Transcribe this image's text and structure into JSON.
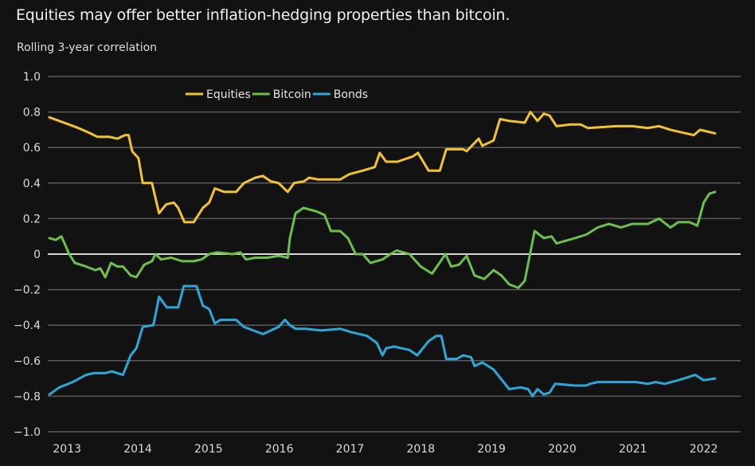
{
  "title": "Equities may offer better inflation-hedging properties than bitcoin.",
  "subtitle": "Rolling 3-year correlation",
  "chart_data": {
    "type": "line",
    "title": "Equities may offer better inflation-hedging properties than bitcoin.",
    "ylabel": "Rolling 3-year correlation",
    "xlabel": "",
    "ylim": [
      -1.0,
      1.0
    ],
    "xlim": [
      2012.75,
      2022.5
    ],
    "grid": true,
    "legend_position": "top-center",
    "y_ticks": [
      1.0,
      0.8,
      0.6,
      0.4,
      0.2,
      0,
      -0.2,
      -0.4,
      -0.6,
      -0.8,
      -1.0
    ],
    "y_tick_labels": [
      "1.0",
      "0.8",
      "0.6",
      "0.4",
      "0.2",
      "0",
      "−0.2",
      "−0.4",
      "−0.6",
      "−0.8",
      "−1.0"
    ],
    "x_ticks": [
      2013,
      2014,
      2015,
      2016,
      2017,
      2018,
      2019,
      2020,
      2021,
      2022
    ],
    "x_tick_labels": [
      "2013",
      "2014",
      "2015",
      "2016",
      "2017",
      "2018",
      "2019",
      "2020",
      "2021",
      "2022"
    ],
    "series": [
      {
        "name": "Equities",
        "color": "#f2c429",
        "points": [
          [
            2012.75,
            0.77
          ],
          [
            2012.89,
            0.75
          ],
          [
            2013.16,
            0.71
          ],
          [
            2013.33,
            0.68
          ],
          [
            2013.43,
            0.66
          ],
          [
            2013.6,
            0.66
          ],
          [
            2013.71,
            0.65
          ],
          [
            2013.82,
            0.67
          ],
          [
            2013.87,
            0.67
          ],
          [
            2013.92,
            0.58
          ],
          [
            2014.01,
            0.54
          ],
          [
            2014.07,
            0.4
          ],
          [
            2014.2,
            0.4
          ],
          [
            2014.3,
            0.23
          ],
          [
            2014.4,
            0.28
          ],
          [
            2014.51,
            0.29
          ],
          [
            2014.57,
            0.26
          ],
          [
            2014.66,
            0.18
          ],
          [
            2014.79,
            0.18
          ],
          [
            2014.92,
            0.26
          ],
          [
            2015.01,
            0.29
          ],
          [
            2015.09,
            0.37
          ],
          [
            2015.22,
            0.35
          ],
          [
            2015.39,
            0.35
          ],
          [
            2015.5,
            0.4
          ],
          [
            2015.66,
            0.43
          ],
          [
            2015.77,
            0.44
          ],
          [
            2015.88,
            0.41
          ],
          [
            2015.99,
            0.4
          ],
          [
            2016.12,
            0.35
          ],
          [
            2016.21,
            0.4
          ],
          [
            2016.35,
            0.41
          ],
          [
            2016.42,
            0.43
          ],
          [
            2016.55,
            0.42
          ],
          [
            2016.75,
            0.42
          ],
          [
            2016.86,
            0.42
          ],
          [
            2016.99,
            0.45
          ],
          [
            2017.18,
            0.47
          ],
          [
            2017.35,
            0.49
          ],
          [
            2017.42,
            0.57
          ],
          [
            2017.51,
            0.52
          ],
          [
            2017.67,
            0.52
          ],
          [
            2017.89,
            0.55
          ],
          [
            2017.96,
            0.57
          ],
          [
            2018.11,
            0.47
          ],
          [
            2018.27,
            0.47
          ],
          [
            2018.36,
            0.59
          ],
          [
            2018.6,
            0.59
          ],
          [
            2018.65,
            0.58
          ],
          [
            2018.82,
            0.65
          ],
          [
            2018.87,
            0.61
          ],
          [
            2019.03,
            0.64
          ],
          [
            2019.12,
            0.76
          ],
          [
            2019.25,
            0.75
          ],
          [
            2019.47,
            0.74
          ],
          [
            2019.55,
            0.8
          ],
          [
            2019.65,
            0.75
          ],
          [
            2019.74,
            0.79
          ],
          [
            2019.82,
            0.78
          ],
          [
            2019.92,
            0.72
          ],
          [
            2020.12,
            0.73
          ],
          [
            2020.26,
            0.73
          ],
          [
            2020.36,
            0.71
          ],
          [
            2020.77,
            0.72
          ],
          [
            2020.99,
            0.72
          ],
          [
            2021.21,
            0.71
          ],
          [
            2021.37,
            0.72
          ],
          [
            2021.53,
            0.7
          ],
          [
            2021.75,
            0.68
          ],
          [
            2021.86,
            0.67
          ],
          [
            2021.95,
            0.7
          ],
          [
            2022.16,
            0.68
          ]
        ]
      },
      {
        "name": "Bitcoin",
        "color": "#6cc04a",
        "points": [
          [
            2012.75,
            0.09
          ],
          [
            2012.84,
            0.08
          ],
          [
            2012.92,
            0.1
          ],
          [
            2013.03,
            0.0
          ],
          [
            2013.11,
            -0.05
          ],
          [
            2013.27,
            -0.07
          ],
          [
            2013.4,
            -0.09
          ],
          [
            2013.47,
            -0.08
          ],
          [
            2013.54,
            -0.13
          ],
          [
            2013.62,
            -0.05
          ],
          [
            2013.71,
            -0.07
          ],
          [
            2013.79,
            -0.07
          ],
          [
            2013.9,
            -0.12
          ],
          [
            2013.98,
            -0.13
          ],
          [
            2014.09,
            -0.06
          ],
          [
            2014.2,
            -0.04
          ],
          [
            2014.25,
            0.0
          ],
          [
            2014.33,
            -0.03
          ],
          [
            2014.47,
            -0.02
          ],
          [
            2014.63,
            -0.04
          ],
          [
            2014.79,
            -0.04
          ],
          [
            2014.9,
            -0.03
          ],
          [
            2015.01,
            0.0
          ],
          [
            2015.12,
            0.01
          ],
          [
            2015.34,
            0.0
          ],
          [
            2015.45,
            0.01
          ],
          [
            2015.53,
            -0.03
          ],
          [
            2015.66,
            -0.02
          ],
          [
            2015.83,
            -0.02
          ],
          [
            2015.99,
            -0.01
          ],
          [
            2016.12,
            -0.02
          ],
          [
            2016.15,
            0.09
          ],
          [
            2016.23,
            0.23
          ],
          [
            2016.34,
            0.26
          ],
          [
            2016.53,
            0.24
          ],
          [
            2016.64,
            0.22
          ],
          [
            2016.73,
            0.13
          ],
          [
            2016.86,
            0.13
          ],
          [
            2016.97,
            0.09
          ],
          [
            2017.08,
            0.0
          ],
          [
            2017.18,
            0.0
          ],
          [
            2017.29,
            -0.05
          ],
          [
            2017.46,
            -0.03
          ],
          [
            2017.57,
            0.0
          ],
          [
            2017.66,
            0.02
          ],
          [
            2017.84,
            0.0
          ],
          [
            2018.0,
            -0.07
          ],
          [
            2018.16,
            -0.11
          ],
          [
            2018.35,
            0.0
          ],
          [
            2018.43,
            -0.07
          ],
          [
            2018.54,
            -0.06
          ],
          [
            2018.65,
            -0.01
          ],
          [
            2018.76,
            -0.12
          ],
          [
            2018.9,
            -0.14
          ],
          [
            2019.03,
            -0.09
          ],
          [
            2019.14,
            -0.12
          ],
          [
            2019.25,
            -0.17
          ],
          [
            2019.38,
            -0.19
          ],
          [
            2019.47,
            -0.15
          ],
          [
            2019.61,
            0.13
          ],
          [
            2019.74,
            0.09
          ],
          [
            2019.85,
            0.1
          ],
          [
            2019.92,
            0.06
          ],
          [
            2020.18,
            0.09
          ],
          [
            2020.34,
            0.11
          ],
          [
            2020.5,
            0.15
          ],
          [
            2020.66,
            0.17
          ],
          [
            2020.83,
            0.15
          ],
          [
            2020.99,
            0.17
          ],
          [
            2021.21,
            0.17
          ],
          [
            2021.37,
            0.2
          ],
          [
            2021.53,
            0.15
          ],
          [
            2021.64,
            0.18
          ],
          [
            2021.8,
            0.18
          ],
          [
            2021.91,
            0.16
          ],
          [
            2022.0,
            0.29
          ],
          [
            2022.08,
            0.34
          ],
          [
            2022.16,
            0.35
          ]
        ]
      },
      {
        "name": "Bonds",
        "color": "#2aa8d8",
        "points": [
          [
            2012.75,
            -0.79
          ],
          [
            2012.89,
            -0.75
          ],
          [
            2013.08,
            -0.72
          ],
          [
            2013.27,
            -0.68
          ],
          [
            2013.38,
            -0.67
          ],
          [
            2013.54,
            -0.67
          ],
          [
            2013.63,
            -0.66
          ],
          [
            2013.79,
            -0.68
          ],
          [
            2013.9,
            -0.57
          ],
          [
            2013.98,
            -0.53
          ],
          [
            2014.07,
            -0.41
          ],
          [
            2014.22,
            -0.4
          ],
          [
            2014.3,
            -0.24
          ],
          [
            2014.41,
            -0.3
          ],
          [
            2014.57,
            -0.3
          ],
          [
            2014.65,
            -0.18
          ],
          [
            2014.83,
            -0.18
          ],
          [
            2014.92,
            -0.29
          ],
          [
            2015.01,
            -0.31
          ],
          [
            2015.09,
            -0.39
          ],
          [
            2015.17,
            -0.37
          ],
          [
            2015.39,
            -0.37
          ],
          [
            2015.5,
            -0.41
          ],
          [
            2015.77,
            -0.45
          ],
          [
            2015.88,
            -0.43
          ],
          [
            2015.99,
            -0.41
          ],
          [
            2016.08,
            -0.37
          ],
          [
            2016.15,
            -0.4
          ],
          [
            2016.23,
            -0.42
          ],
          [
            2016.37,
            -0.42
          ],
          [
            2016.59,
            -0.43
          ],
          [
            2016.86,
            -0.42
          ],
          [
            2017.02,
            -0.44
          ],
          [
            2017.24,
            -0.46
          ],
          [
            2017.38,
            -0.5
          ],
          [
            2017.46,
            -0.57
          ],
          [
            2017.51,
            -0.53
          ],
          [
            2017.62,
            -0.52
          ],
          [
            2017.84,
            -0.54
          ],
          [
            2017.95,
            -0.57
          ],
          [
            2018.11,
            -0.49
          ],
          [
            2018.22,
            -0.46
          ],
          [
            2018.29,
            -0.46
          ],
          [
            2018.36,
            -0.59
          ],
          [
            2018.51,
            -0.59
          ],
          [
            2018.6,
            -0.57
          ],
          [
            2018.71,
            -0.58
          ],
          [
            2018.76,
            -0.63
          ],
          [
            2018.87,
            -0.61
          ],
          [
            2019.03,
            -0.65
          ],
          [
            2019.25,
            -0.76
          ],
          [
            2019.41,
            -0.75
          ],
          [
            2019.52,
            -0.76
          ],
          [
            2019.58,
            -0.8
          ],
          [
            2019.65,
            -0.76
          ],
          [
            2019.74,
            -0.79
          ],
          [
            2019.82,
            -0.78
          ],
          [
            2019.9,
            -0.73
          ],
          [
            2020.18,
            -0.74
          ],
          [
            2020.34,
            -0.74
          ],
          [
            2020.39,
            -0.73
          ],
          [
            2020.5,
            -0.72
          ],
          [
            2020.77,
            -0.72
          ],
          [
            2021.04,
            -0.72
          ],
          [
            2021.21,
            -0.73
          ],
          [
            2021.32,
            -0.72
          ],
          [
            2021.45,
            -0.73
          ],
          [
            2021.64,
            -0.71
          ],
          [
            2021.8,
            -0.69
          ],
          [
            2021.88,
            -0.68
          ],
          [
            2022.0,
            -0.71
          ],
          [
            2022.16,
            -0.7
          ]
        ]
      }
    ]
  }
}
